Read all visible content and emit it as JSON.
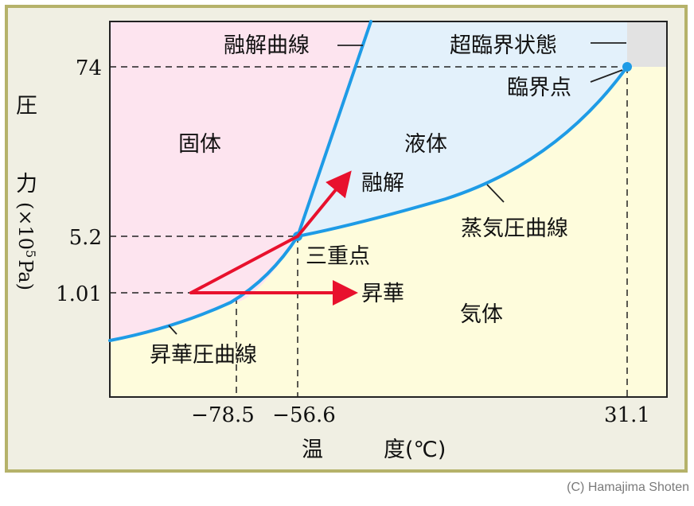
{
  "regions": {
    "solid": "固体",
    "liquid": "液体",
    "gas": "気体"
  },
  "curve_labels": {
    "melting": "融解曲線",
    "supercritical": "超臨界状態",
    "critical_point": "臨界点",
    "triple_point": "三重点",
    "vapor_pressure": "蒸気圧曲線",
    "sublimation_curve": "昇華圧曲線"
  },
  "arrows": {
    "melting": "融解",
    "sublimation": "昇華"
  },
  "axes": {
    "y_label_chars": [
      "圧",
      "力"
    ],
    "y_unit_prefix": "(×10",
    "y_unit_exp": "5",
    "y_unit_suffix": "Pa)",
    "y_ticks": [
      "74",
      "5.2",
      "1.01"
    ],
    "x_ticks": [
      "−78.5",
      "−56.6",
      "31.1"
    ],
    "x_label_a": "温",
    "x_label_b": "度(℃)"
  },
  "credit": "(C) Hamajima Shoten",
  "colors": {
    "solid": "#fde4ef",
    "liquid": "#e3f1fb",
    "gas": "#fefcdc",
    "supercritical": "#e2e2e2",
    "curve": "#1e9be6",
    "arrow": "#e8112d",
    "frame": "#b5b26a"
  }
}
